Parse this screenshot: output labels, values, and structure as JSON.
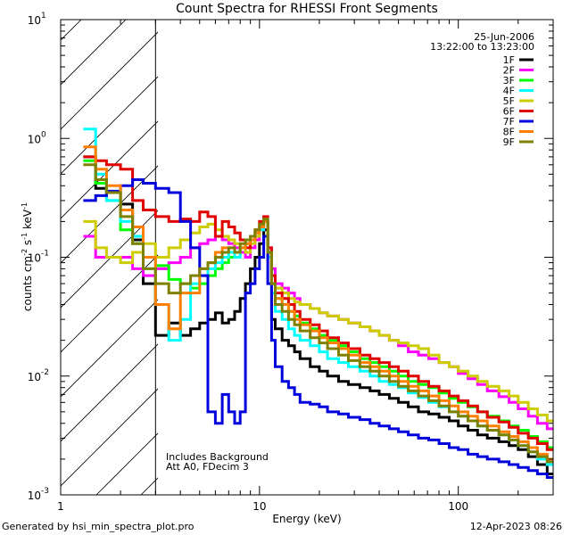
{
  "chart_data": {
    "type": "line",
    "title": "Count Spectra for RHESSI Front Segments",
    "xlabel": "Energy (keV)",
    "ylabel_base": "counts cm",
    "ylabel_exp1": "-2",
    "ylabel_mid": " s",
    "ylabel_exp2": "-1",
    "ylabel_end": " keV",
    "ylabel_exp3": "-1",
    "xscale": "log",
    "yscale": "log",
    "xlim": [
      1,
      300
    ],
    "ylim": [
      0.001,
      10
    ],
    "xticks": [
      {
        "v": 1,
        "label": "1"
      },
      {
        "v": 10,
        "label": "10"
      },
      {
        "v": 100,
        "label": "100"
      }
    ],
    "yticks": [
      {
        "v": 0.001,
        "base": "10",
        "exp": "-3"
      },
      {
        "v": 0.01,
        "base": "10",
        "exp": "-2"
      },
      {
        "v": 0.1,
        "base": "10",
        "exp": "-1"
      },
      {
        "v": 1,
        "base": "10",
        "exp": "0"
      },
      {
        "v": 10,
        "base": "10",
        "exp": "1"
      }
    ],
    "hatched_region_keV": [
      1,
      3
    ],
    "date": "25-Jun-2006",
    "time_range": "13:22:00 to 13:23:00",
    "notes": [
      "Includes Background",
      "Att A0, FDecim 3"
    ],
    "x_edges": [
      1.3,
      1.5,
      1.7,
      2.0,
      2.3,
      2.6,
      3.0,
      3.5,
      4.0,
      4.5,
      5.0,
      5.5,
      6.0,
      6.5,
      7.0,
      7.5,
      8.0,
      8.5,
      9.0,
      9.5,
      10.0,
      10.5,
      11.0,
      11.5,
      12.0,
      13.0,
      14.0,
      15.0,
      16.0,
      18.0,
      20.0,
      22.0,
      25.0,
      28.0,
      32.0,
      36.0,
      40.0,
      45.0,
      50.0,
      56.0,
      63.0,
      71.0,
      80.0,
      90.0,
      100.0,
      112.0,
      125.0,
      140.0,
      160.0,
      180.0,
      200.0,
      225.0,
      250.0,
      280.0,
      300.0
    ],
    "series": [
      {
        "name": "1F",
        "color": "#000000",
        "values": [
          0.7,
          0.38,
          0.35,
          0.28,
          0.14,
          0.06,
          0.022,
          0.028,
          0.022,
          0.025,
          0.028,
          0.03,
          0.034,
          0.028,
          0.03,
          0.035,
          0.045,
          0.06,
          0.08,
          0.1,
          0.13,
          0.17,
          0.11,
          0.03,
          0.025,
          0.02,
          0.018,
          0.016,
          0.014,
          0.012,
          0.011,
          0.01,
          0.009,
          0.0085,
          0.008,
          0.0075,
          0.007,
          0.0065,
          0.006,
          0.0055,
          0.005,
          0.0048,
          0.0045,
          0.0042,
          0.0038,
          0.0035,
          0.0032,
          0.003,
          0.0028,
          0.0026,
          0.0024,
          0.0021,
          0.0018,
          0.0015
        ]
      },
      {
        "name": "2F",
        "color": "#ff00ff",
        "values": [
          0.15,
          0.1,
          0.1,
          0.1,
          0.08,
          0.07,
          0.08,
          0.09,
          0.1,
          0.12,
          0.13,
          0.14,
          0.15,
          0.14,
          0.13,
          0.12,
          0.11,
          0.1,
          0.12,
          0.14,
          0.17,
          0.2,
          0.12,
          0.08,
          0.06,
          0.055,
          0.05,
          0.045,
          0.04,
          0.037,
          0.034,
          0.032,
          0.03,
          0.028,
          0.026,
          0.024,
          0.022,
          0.02,
          0.018,
          0.016,
          0.015,
          0.014,
          0.013,
          0.012,
          0.0105,
          0.0095,
          0.0085,
          0.0075,
          0.0067,
          0.006,
          0.0053,
          0.0046,
          0.004,
          0.0036
        ]
      },
      {
        "name": "3F",
        "color": "#00ff00",
        "values": [
          0.65,
          0.42,
          0.3,
          0.17,
          0.13,
          0.1,
          0.085,
          0.065,
          0.06,
          0.055,
          0.06,
          0.07,
          0.08,
          0.09,
          0.1,
          0.11,
          0.12,
          0.13,
          0.14,
          0.16,
          0.18,
          0.2,
          0.11,
          0.06,
          0.045,
          0.04,
          0.035,
          0.032,
          0.028,
          0.025,
          0.022,
          0.02,
          0.018,
          0.016,
          0.014,
          0.013,
          0.012,
          0.011,
          0.01,
          0.009,
          0.0085,
          0.008,
          0.0072,
          0.0065,
          0.006,
          0.0055,
          0.005,
          0.0046,
          0.0042,
          0.0038,
          0.0035,
          0.0031,
          0.0028,
          0.0025
        ]
      },
      {
        "name": "4F",
        "color": "#00ffff",
        "values": [
          1.2,
          0.5,
          0.3,
          0.2,
          0.15,
          0.08,
          0.04,
          0.02,
          0.03,
          0.06,
          0.07,
          0.08,
          0.09,
          0.1,
          0.11,
          0.1,
          0.12,
          0.13,
          0.14,
          0.15,
          0.17,
          0.2,
          0.1,
          0.05,
          0.035,
          0.03,
          0.025,
          0.022,
          0.02,
          0.018,
          0.016,
          0.014,
          0.013,
          0.012,
          0.011,
          0.01,
          0.009,
          0.0085,
          0.008,
          0.0072,
          0.0066,
          0.006,
          0.0055,
          0.005,
          0.0046,
          0.0042,
          0.0038,
          0.0035,
          0.0032,
          0.0029,
          0.0026,
          0.0023,
          0.002,
          0.0018
        ]
      },
      {
        "name": "5F",
        "color": "#cccc00",
        "values": [
          0.2,
          0.12,
          0.1,
          0.09,
          0.11,
          0.13,
          0.1,
          0.12,
          0.14,
          0.16,
          0.18,
          0.19,
          0.17,
          0.15,
          0.14,
          0.13,
          0.12,
          0.11,
          0.13,
          0.15,
          0.18,
          0.2,
          0.11,
          0.07,
          0.055,
          0.05,
          0.045,
          0.042,
          0.04,
          0.037,
          0.034,
          0.032,
          0.03,
          0.028,
          0.026,
          0.024,
          0.022,
          0.02,
          0.019,
          0.018,
          0.017,
          0.015,
          0.013,
          0.012,
          0.011,
          0.01,
          0.009,
          0.0082,
          0.0075,
          0.0068,
          0.006,
          0.0053,
          0.0047,
          0.0042
        ]
      },
      {
        "name": "6F",
        "color": "#e00000",
        "values": [
          0.7,
          0.65,
          0.6,
          0.55,
          0.3,
          0.25,
          0.22,
          0.2,
          0.21,
          0.2,
          0.24,
          0.22,
          0.15,
          0.2,
          0.18,
          0.16,
          0.14,
          0.12,
          0.14,
          0.17,
          0.2,
          0.22,
          0.12,
          0.07,
          0.05,
          0.045,
          0.04,
          0.035,
          0.03,
          0.027,
          0.024,
          0.021,
          0.019,
          0.017,
          0.015,
          0.014,
          0.013,
          0.012,
          0.011,
          0.01,
          0.009,
          0.0082,
          0.0075,
          0.0068,
          0.0062,
          0.0056,
          0.005,
          0.0045,
          0.0041,
          0.0037,
          0.0033,
          0.003,
          0.0027,
          0.0024
        ]
      },
      {
        "name": "7F",
        "color": "#0000dd",
        "values": [
          0.3,
          0.33,
          0.36,
          0.4,
          0.45,
          0.42,
          0.38,
          0.35,
          0.2,
          0.12,
          0.07,
          0.005,
          0.004,
          0.007,
          0.005,
          0.004,
          0.005,
          0.05,
          0.06,
          0.08,
          0.1,
          0.15,
          0.06,
          0.02,
          0.012,
          0.009,
          0.008,
          0.007,
          0.006,
          0.0058,
          0.0055,
          0.005,
          0.0048,
          0.0045,
          0.0043,
          0.004,
          0.0038,
          0.0036,
          0.0034,
          0.0032,
          0.003,
          0.0029,
          0.0027,
          0.0025,
          0.0024,
          0.0022,
          0.0021,
          0.002,
          0.0019,
          0.0018,
          0.0017,
          0.0016,
          0.0015,
          0.0014
        ]
      },
      {
        "name": "8F",
        "color": "#ff8000",
        "values": [
          0.85,
          0.55,
          0.4,
          0.25,
          0.18,
          0.1,
          0.04,
          0.025,
          0.05,
          0.05,
          0.08,
          0.09,
          0.11,
          0.12,
          0.12,
          0.11,
          0.12,
          0.13,
          0.14,
          0.16,
          0.18,
          0.2,
          0.11,
          0.06,
          0.045,
          0.04,
          0.035,
          0.03,
          0.027,
          0.024,
          0.021,
          0.019,
          0.017,
          0.015,
          0.013,
          0.012,
          0.011,
          0.01,
          0.009,
          0.0082,
          0.0075,
          0.0068,
          0.0062,
          0.0056,
          0.005,
          0.0046,
          0.0042,
          0.0038,
          0.0034,
          0.0031,
          0.0028,
          0.0025,
          0.0022,
          0.002
        ]
      },
      {
        "name": "9F",
        "color": "#808000",
        "values": [
          0.6,
          0.45,
          0.35,
          0.22,
          0.13,
          0.08,
          0.06,
          0.05,
          0.06,
          0.07,
          0.08,
          0.09,
          0.1,
          0.11,
          0.12,
          0.11,
          0.13,
          0.14,
          0.15,
          0.17,
          0.19,
          0.21,
          0.11,
          0.06,
          0.04,
          0.035,
          0.03,
          0.027,
          0.024,
          0.021,
          0.019,
          0.017,
          0.015,
          0.0135,
          0.012,
          0.011,
          0.01,
          0.009,
          0.0082,
          0.0075,
          0.0068,
          0.0062,
          0.0056,
          0.005,
          0.0046,
          0.0042,
          0.0038,
          0.0035,
          0.0032,
          0.0029,
          0.0026,
          0.0023,
          0.0021,
          0.0019
        ]
      }
    ]
  },
  "footer": {
    "generated_by": "Generated by hsi_min_spectra_plot.pro",
    "timestamp": "12-Apr-2023 08:26"
  }
}
